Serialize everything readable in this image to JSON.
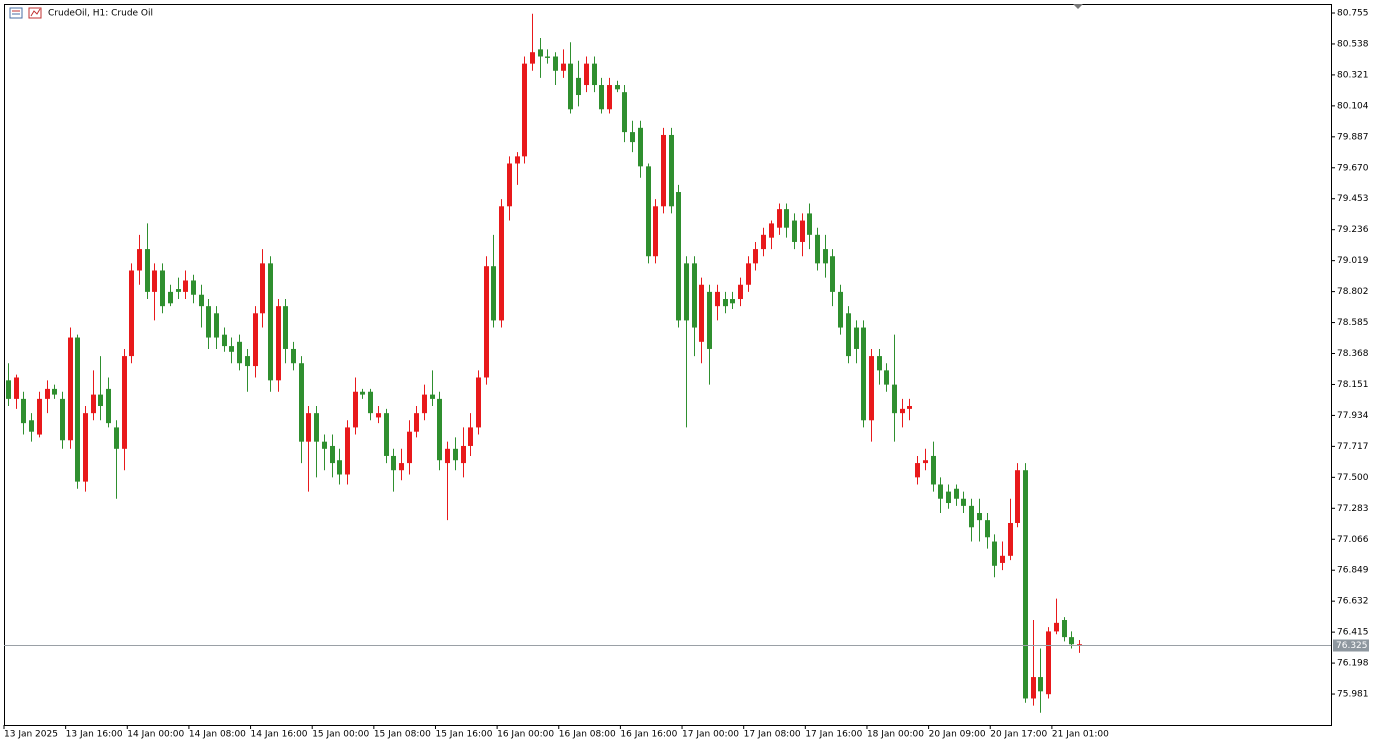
{
  "chart_data": {
    "type": "candlestick",
    "title": "CrudeOil, H1:  Crude Oil",
    "up_color": "#e8191b",
    "down_color": "#2f8f2f",
    "current_price": 76.325,
    "current_price_label": "76.325",
    "ylim": [
      75.764,
      80.818
    ],
    "yticks": [
      80.755,
      80.538,
      80.321,
      80.104,
      79.887,
      {
        "value": 79.67,
        "label": "79.670"
      },
      79.453,
      79.236,
      79.019,
      78.802,
      78.585,
      78.368,
      78.151,
      77.934,
      77.717,
      {
        "value": 77.5,
        "label": "77.500"
      },
      77.283,
      77.066,
      76.849,
      76.632,
      76.415,
      76.198,
      75.981
    ],
    "xticks": [
      {
        "value": 0,
        "label": "13 Jan 2025"
      },
      {
        "value": 8,
        "label": "13 Jan 16:00"
      },
      {
        "value": 16,
        "label": "14 Jan 00:00"
      },
      {
        "value": 24,
        "label": "14 Jan 08:00"
      },
      {
        "value": 32,
        "label": "14 Jan 16:00"
      },
      {
        "value": 40,
        "label": "15 Jan 00:00"
      },
      {
        "value": 48,
        "label": "15 Jan 08:00"
      },
      {
        "value": 56,
        "label": "15 Jan 16:00"
      },
      {
        "value": 64,
        "label": "16 Jan 00:00"
      },
      {
        "value": 72,
        "label": "16 Jan 08:00"
      },
      {
        "value": 80,
        "label": "16 Jan 16:00"
      },
      {
        "value": 88,
        "label": "17 Jan 00:00"
      },
      {
        "value": 96,
        "label": "17 Jan 08:00"
      },
      {
        "value": 104,
        "label": "17 Jan 16:00"
      },
      {
        "value": 112,
        "label": "18 Jan 00:00"
      },
      {
        "value": 120,
        "label": "20 Jan 09:00"
      },
      {
        "value": 128,
        "label": "20 Jan 17:00"
      },
      {
        "value": 136,
        "label": "21 Jan 01:00"
      }
    ],
    "open": [
      78.18,
      78.05,
      78.05,
      77.9,
      77.8,
      78.05,
      78.12,
      78.05,
      77.76,
      78.48,
      77.47,
      77.95,
      78.08,
      78.12,
      77.85,
      77.7,
      78.35,
      78.95,
      79.1,
      78.8,
      78.95,
      78.8,
      78.82,
      78.8,
      78.88,
      78.78,
      78.7,
      78.65,
      78.5,
      78.42,
      78.45,
      78.35,
      78.28,
      78.65,
      79.0,
      78.18,
      78.7,
      78.4,
      78.3,
      77.75,
      77.95,
      77.75,
      77.72,
      77.62,
      77.52,
      77.85,
      78.1,
      78.1,
      77.92,
      77.95,
      77.65,
      77.55,
      77.6,
      77.82,
      77.95,
      78.08,
      78.05,
      77.6,
      77.7,
      77.6,
      77.72,
      77.85,
      78.2,
      78.98,
      78.6,
      79.4,
      79.7,
      79.75,
      80.4,
      80.5,
      80.45,
      80.45,
      80.35,
      80.4,
      80.3,
      80.25,
      80.4,
      80.25,
      80.08,
      80.25,
      80.2,
      79.92,
      79.95,
      79.68,
      79.05,
      79.4,
      79.9,
      79.5,
      79.0,
      79.0,
      78.45,
      78.8,
      78.7,
      78.75,
      78.75,
      78.75,
      78.85,
      79.0,
      79.1,
      79.18,
      79.25,
      79.38,
      79.3,
      79.15,
      79.35,
      79.2,
      79.1,
      79.05,
      78.8,
      78.65,
      78.55,
      78.55,
      77.9,
      78.35,
      78.25,
      78.15,
      77.95,
      77.98,
      77.5,
      77.6,
      77.65,
      77.45,
      77.4,
      77.42,
      77.35,
      77.3,
      77.25,
      77.2,
      77.05,
      76.9,
      76.95,
      77.18,
      77.55,
      75.95,
      76.1,
      75.98,
      76.42,
      76.5,
      76.38,
      76.32
    ],
    "high": [
      78.3,
      78.22,
      78.1,
      77.95,
      78.1,
      78.18,
      78.15,
      78.1,
      78.55,
      78.5,
      78.0,
      78.25,
      78.35,
      78.2,
      77.9,
      78.4,
      79.0,
      79.2,
      79.28,
      79.0,
      79.0,
      78.85,
      78.9,
      78.95,
      78.92,
      78.85,
      78.75,
      78.7,
      78.55,
      78.48,
      78.5,
      78.4,
      78.7,
      79.1,
      79.05,
      78.75,
      78.75,
      78.45,
      78.35,
      78.0,
      78.0,
      77.8,
      77.8,
      77.7,
      77.9,
      78.2,
      78.12,
      78.12,
      78.0,
      77.98,
      77.7,
      77.7,
      77.9,
      78.0,
      78.15,
      78.25,
      78.1,
      77.75,
      77.78,
      77.85,
      77.95,
      78.25,
      79.05,
      79.2,
      79.45,
      79.75,
      79.78,
      80.45,
      80.75,
      80.58,
      80.5,
      80.48,
      80.5,
      80.55,
      80.42,
      80.45,
      80.45,
      80.3,
      80.3,
      80.28,
      80.25,
      80.0,
      80.0,
      79.7,
      79.45,
      79.95,
      79.95,
      79.55,
      79.05,
      79.05,
      78.9,
      78.85,
      78.85,
      78.8,
      78.8,
      78.9,
      79.05,
      79.15,
      79.25,
      79.3,
      79.42,
      79.42,
      79.35,
      79.35,
      79.42,
      79.25,
      79.2,
      79.1,
      78.85,
      78.7,
      78.6,
      78.6,
      78.4,
      78.4,
      78.3,
      78.5,
      78.05,
      78.05,
      77.65,
      77.7,
      77.75,
      77.5,
      77.45,
      77.45,
      77.4,
      77.35,
      77.35,
      77.25,
      77.1,
      77.05,
      77.35,
      77.6,
      77.6,
      76.5,
      76.3,
      76.45,
      76.65,
      76.52,
      76.42,
      76.36
    ],
    "low": [
      78.0,
      77.98,
      77.8,
      77.75,
      77.78,
      77.95,
      78.05,
      77.7,
      77.7,
      77.42,
      77.4,
      77.9,
      77.9,
      77.85,
      77.35,
      77.55,
      78.3,
      78.85,
      78.75,
      78.6,
      78.65,
      78.7,
      78.75,
      78.75,
      78.72,
      78.55,
      78.4,
      78.4,
      78.38,
      78.3,
      78.25,
      78.1,
      78.2,
      78.55,
      78.1,
      78.1,
      78.3,
      78.25,
      77.6,
      77.4,
      77.5,
      77.55,
      77.5,
      77.45,
      77.45,
      77.8,
      78.05,
      77.9,
      77.88,
      77.6,
      77.4,
      77.48,
      77.52,
      77.78,
      77.9,
      78.0,
      77.55,
      77.2,
      77.55,
      77.5,
      77.65,
      77.8,
      78.15,
      78.55,
      78.55,
      79.3,
      79.55,
      79.7,
      80.35,
      80.3,
      80.4,
      80.25,
      80.3,
      80.05,
      80.1,
      80.2,
      80.2,
      80.05,
      80.05,
      80.2,
      79.85,
      79.78,
      79.6,
      79.0,
      79.0,
      79.35,
      79.35,
      78.55,
      77.85,
      78.35,
      78.3,
      78.15,
      78.6,
      78.65,
      78.68,
      78.7,
      78.8,
      78.95,
      79.05,
      79.1,
      79.2,
      79.18,
      79.1,
      79.05,
      79.1,
      78.95,
      78.9,
      78.7,
      78.5,
      78.3,
      78.3,
      77.85,
      77.75,
      78.15,
      78.1,
      77.75,
      77.85,
      77.9,
      77.45,
      77.55,
      77.4,
      77.25,
      77.28,
      77.3,
      77.25,
      77.05,
      77.05,
      77.0,
      76.8,
      76.85,
      76.92,
      77.15,
      75.92,
      75.9,
      75.85,
      75.95,
      76.4,
      76.35,
      76.3,
      76.27
    ],
    "close": [
      78.05,
      78.2,
      77.88,
      77.82,
      78.05,
      78.12,
      78.08,
      77.76,
      78.48,
      77.47,
      77.95,
      78.08,
      78.0,
      77.88,
      77.7,
      78.35,
      78.95,
      79.1,
      78.8,
      78.95,
      78.7,
      78.72,
      78.8,
      78.88,
      78.78,
      78.7,
      78.48,
      78.48,
      78.42,
      78.38,
      78.3,
      78.28,
      78.65,
      79.0,
      78.18,
      78.7,
      78.4,
      78.3,
      77.75,
      77.95,
      77.75,
      77.7,
      77.6,
      77.52,
      77.85,
      78.1,
      78.08,
      77.95,
      77.95,
      77.65,
      77.55,
      77.6,
      77.82,
      77.95,
      78.08,
      78.05,
      77.62,
      77.7,
      77.62,
      77.72,
      77.85,
      78.2,
      78.98,
      78.6,
      79.4,
      79.7,
      79.75,
      80.4,
      80.48,
      80.45,
      80.44,
      80.35,
      80.4,
      80.08,
      80.18,
      80.4,
      80.25,
      80.08,
      80.25,
      80.22,
      79.92,
      79.85,
      79.68,
      79.05,
      79.4,
      79.9,
      79.4,
      78.6,
      78.6,
      78.55,
      78.85,
      78.4,
      78.8,
      78.7,
      78.72,
      78.85,
      79.0,
      79.1,
      79.2,
      79.28,
      79.38,
      79.25,
      79.15,
      79.3,
      79.2,
      79.0,
      79.0,
      78.8,
      78.55,
      78.35,
      78.4,
      77.9,
      78.35,
      78.25,
      78.15,
      77.95,
      77.98,
      78.0,
      77.6,
      77.62,
      77.45,
      77.35,
      77.32,
      77.35,
      77.3,
      77.15,
      77.2,
      77.08,
      76.88,
      76.95,
      77.18,
      77.55,
      75.95,
      76.1,
      76.0,
      76.42,
      76.48,
      76.38,
      76.33,
      76.33
    ]
  }
}
